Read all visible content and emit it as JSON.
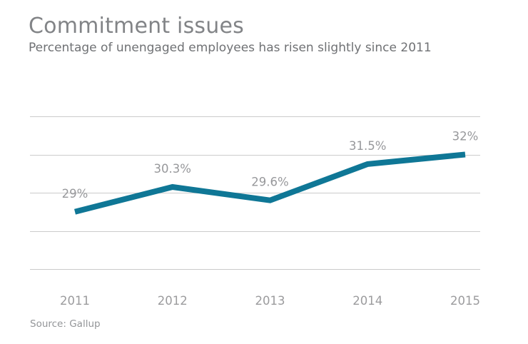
{
  "header": {
    "title": "Commitment issues",
    "subtitle": "Percentage of unengaged employees has risen slightly since 2011"
  },
  "source": {
    "label": "Source: Gallup"
  },
  "chart_data": {
    "type": "line",
    "title": "Commitment issues",
    "subtitle": "Percentage of unengaged employees has risen slightly since 2011",
    "source": "Source: Gallup",
    "categories": [
      "2011",
      "2012",
      "2013",
      "2014",
      "2015"
    ],
    "values": [
      29,
      30.3,
      29.6,
      31.5,
      32
    ],
    "point_labels": [
      "29%",
      "30.3%",
      "29.6%",
      "31.5%",
      "32%"
    ],
    "xlabel": "",
    "ylabel": "",
    "ylim": [
      26,
      34
    ],
    "gridline_step": 2,
    "grid": "horizontal-only-unlabeled",
    "legend": "none",
    "line_color": "#0f7796",
    "line_width": 8,
    "gridline_color": "#cbcbcb",
    "point_label_color": "#97989b",
    "axis_label_color": "#9b9b9d"
  }
}
